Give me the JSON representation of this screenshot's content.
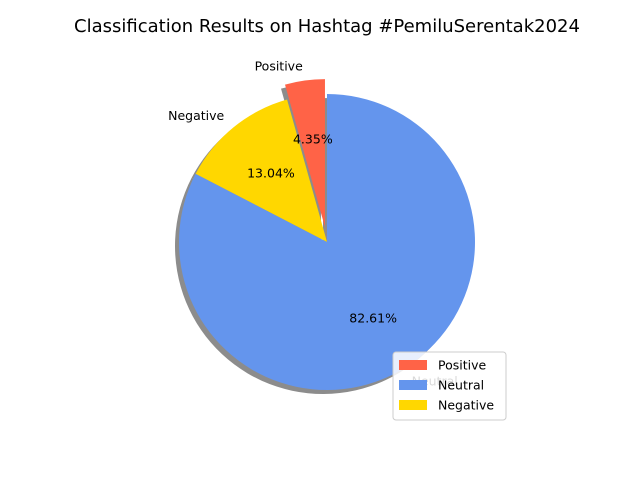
{
  "chart_data": {
    "type": "pie",
    "title": "Classification Results on Hashtag #PemiluSerentak2024",
    "slices": [
      {
        "label": "Positive",
        "value": 4.35,
        "pct_label": "4.35%",
        "color": "#FF6347",
        "explode": true
      },
      {
        "label": "Negative",
        "value": 13.04,
        "pct_label": "13.04%",
        "color": "#FFD700",
        "explode": false
      },
      {
        "label": "Neutral",
        "value": 82.61,
        "pct_label": "82.61%",
        "color": "#6495ED",
        "explode": false
      }
    ],
    "legend": {
      "placement": "lower-right",
      "entries": [
        {
          "label": "Positive",
          "color": "#FF6347"
        },
        {
          "label": "Neutral",
          "color": "#6495ED"
        },
        {
          "label": "Negative",
          "color": "#FFD700"
        }
      ]
    },
    "shadow": true,
    "start_angle_deg": 90
  }
}
